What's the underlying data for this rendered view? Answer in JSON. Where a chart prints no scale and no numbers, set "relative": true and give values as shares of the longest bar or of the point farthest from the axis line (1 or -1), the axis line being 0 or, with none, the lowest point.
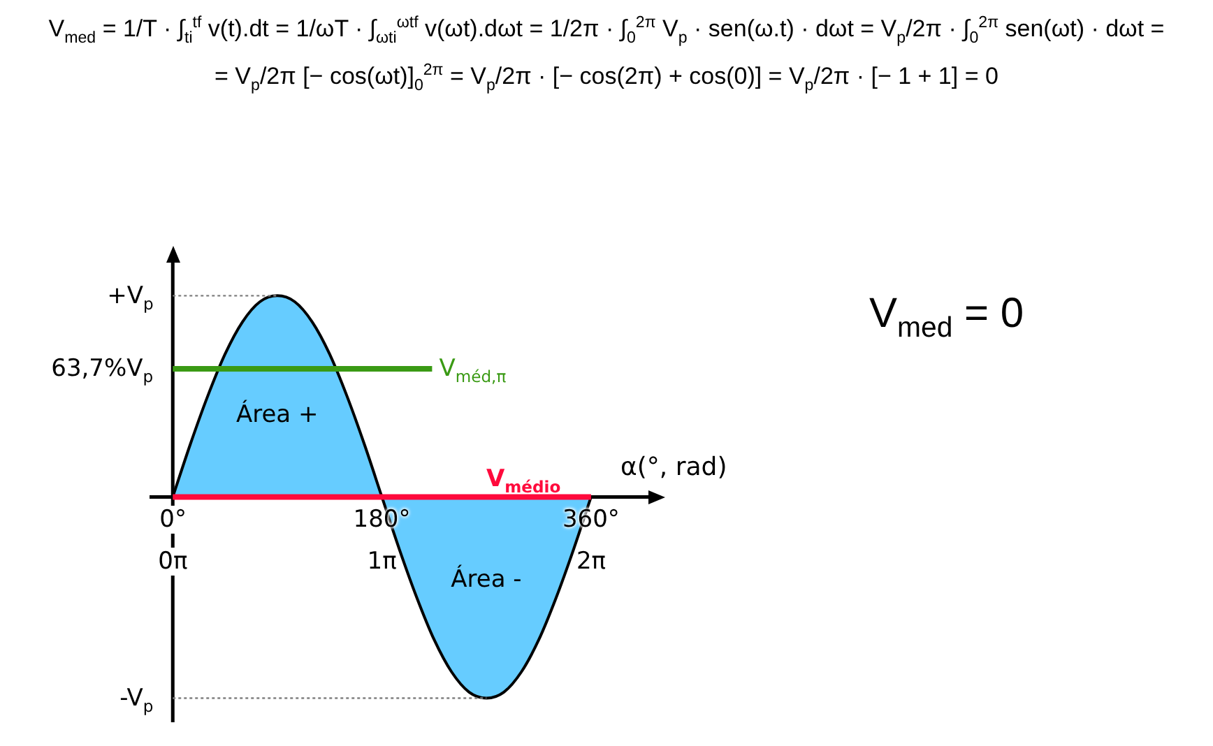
{
  "chart_data": {
    "type": "area",
    "relative": true,
    "x": [
      0,
      15,
      30,
      45,
      60,
      75,
      90,
      105,
      120,
      135,
      150,
      165,
      180,
      195,
      210,
      225,
      240,
      255,
      270,
      285,
      300,
      315,
      330,
      345,
      360
    ],
    "values": [
      0,
      0.26,
      0.5,
      0.71,
      0.87,
      0.97,
      1,
      0.97,
      0.87,
      0.71,
      0.5,
      0.26,
      0,
      -0.26,
      -0.5,
      -0.71,
      -0.87,
      -0.97,
      -1,
      -0.97,
      -0.87,
      -0.71,
      -0.5,
      -0.26,
      0
    ],
    "color": "#66ccff",
    "xlim": [
      -20,
      419
    ],
    "xticks": [
      {
        "value": 0,
        "label": "0°"
      },
      {
        "value": 180,
        "label": "180°"
      },
      {
        "value": 360,
        "label": "360°"
      }
    ],
    "x2lim": [
      -0.349,
      7.313
    ],
    "x2ticks": [
      {
        "value": 0,
        "label": "0π"
      },
      {
        "value": 3.1416,
        "label": "1π"
      },
      {
        "value": 6.2832,
        "label": "2π"
      }
    ],
    "xlabel": "α(°, rad)",
    "ref_lines": [
      {
        "axis": "y",
        "value": 1,
        "color": "#808080",
        "line_style": "dotted"
      },
      {
        "axis": "y",
        "value": -1,
        "color": "#808080",
        "line_style": "dotted"
      },
      {
        "axis": "y",
        "value": 0.637,
        "label": "V$_{méd,π}$",
        "color": "#3a9a14"
      },
      {
        "axis": "y",
        "value": 0,
        "label": "V$_{médio}$",
        "color": "#ff0a3c"
      }
    ],
    "annotations": [
      "V$_{med}$ = 1/T · ∫$_{ti}$$^{tf}$ v(t).dt = 1/ωT · ∫$_{ωti}$$^{ωtf}$ v(ωt).dωt = 1/2π · ∫$_{0}$$^{2π}$ V$_{p}$ · sen(ω.t) · dωt = V$_{p}$/2π · ∫$_{0}$$^{2π}$ sen(ωt) · dωt =",
      "= V$_{p}$/2π [− cos(ωt)]$_{0}$$^{2π}$ = V$_{p}$/2π · [− cos(2π) + cos(0)] = V$_{p}$/2π · [− 1 + 1] = 0",
      "Área +",
      "Área -",
      "V$_{med}$ = 0",
      "+V$_{p}$",
      "63,7%V$_{p}$",
      "-V$_{p}$"
    ]
  }
}
